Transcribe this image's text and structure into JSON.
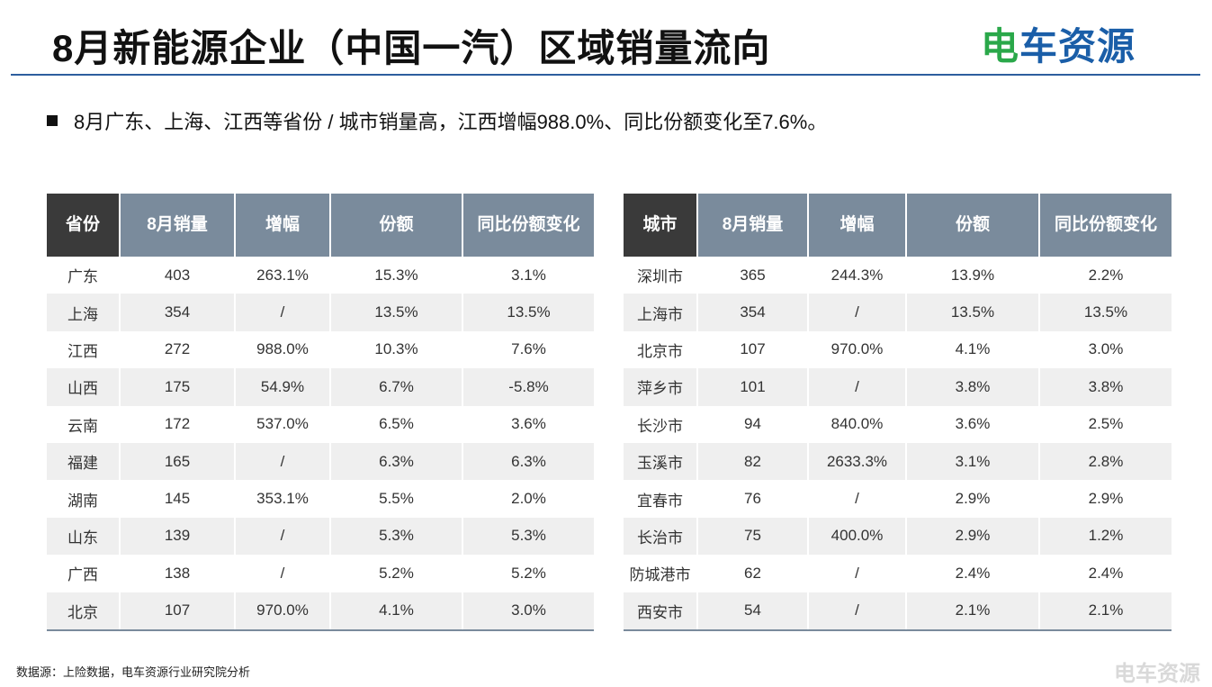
{
  "title": "8月新能源企业（中国一汽）区域销量流向",
  "logo": {
    "part1": "电",
    "part2": "车资源"
  },
  "summary": "8月广东、上海、江西等省份 / 城市销量高，江西增幅988.0%、同比份额变化至7.6%。",
  "province_table": {
    "headers": [
      "省份",
      "8月销量",
      "增幅",
      "份额",
      "同比份额变化"
    ],
    "rows": [
      [
        "广东",
        "403",
        "263.1%",
        "15.3%",
        "3.1%"
      ],
      [
        "上海",
        "354",
        "/",
        "13.5%",
        "13.5%"
      ],
      [
        "江西",
        "272",
        "988.0%",
        "10.3%",
        "7.6%"
      ],
      [
        "山西",
        "175",
        "54.9%",
        "6.7%",
        "-5.8%"
      ],
      [
        "云南",
        "172",
        "537.0%",
        "6.5%",
        "3.6%"
      ],
      [
        "福建",
        "165",
        "/",
        "6.3%",
        "6.3%"
      ],
      [
        "湖南",
        "145",
        "353.1%",
        "5.5%",
        "2.0%"
      ],
      [
        "山东",
        "139",
        "/",
        "5.3%",
        "5.3%"
      ],
      [
        "广西",
        "138",
        "/",
        "5.2%",
        "5.2%"
      ],
      [
        "北京",
        "107",
        "970.0%",
        "4.1%",
        "3.0%"
      ]
    ]
  },
  "city_table": {
    "headers": [
      "城市",
      "8月销量",
      "增幅",
      "份额",
      "同比份额变化"
    ],
    "rows": [
      [
        "深圳市",
        "365",
        "244.3%",
        "13.9%",
        "2.2%"
      ],
      [
        "上海市",
        "354",
        "/",
        "13.5%",
        "13.5%"
      ],
      [
        "北京市",
        "107",
        "970.0%",
        "4.1%",
        "3.0%"
      ],
      [
        "萍乡市",
        "101",
        "/",
        "3.8%",
        "3.8%"
      ],
      [
        "长沙市",
        "94",
        "840.0%",
        "3.6%",
        "2.5%"
      ],
      [
        "玉溪市",
        "82",
        "2633.3%",
        "3.1%",
        "2.8%"
      ],
      [
        "宜春市",
        "76",
        "/",
        "2.9%",
        "2.9%"
      ],
      [
        "长治市",
        "75",
        "400.0%",
        "2.9%",
        "1.2%"
      ],
      [
        "防城港市",
        "62",
        "/",
        "2.4%",
        "2.4%"
      ],
      [
        "西安市",
        "54",
        "/",
        "2.1%",
        "2.1%"
      ]
    ]
  },
  "footnote": "数据源：上险数据，电车资源行业研究院分析",
  "watermark": "电车资源",
  "colors": {
    "header_bg": "#7a8b9c",
    "header_first_bg": "#3a3a3a",
    "rule": "#2d5e9e",
    "logo_blue": "#1a5ea8",
    "logo_green": "#2aa84a"
  }
}
